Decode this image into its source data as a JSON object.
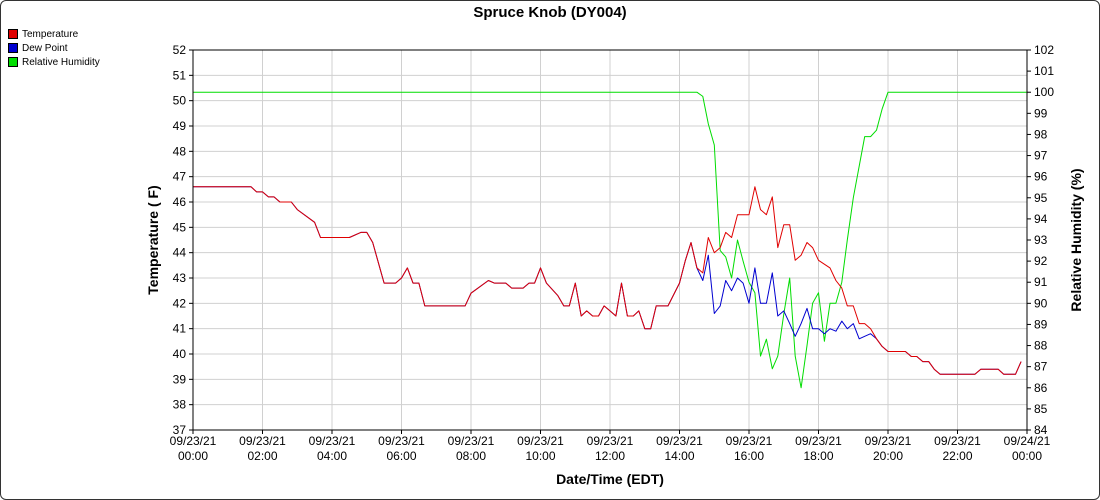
{
  "chart_data": {
    "type": "line",
    "title": "Spruce Knob (DY004)",
    "xlabel": "Date/Time (EDT)",
    "ylabel": "Temperature ( F)",
    "y2label": "Relative Humidity (%)",
    "ylim": [
      37,
      52
    ],
    "y2lim": [
      84,
      102
    ],
    "xlim": [
      0,
      24
    ],
    "grid": true,
    "legend_position": "top-left",
    "x_ticks": [
      {
        "x": 0,
        "line1": "09/23/21",
        "line2": "00:00"
      },
      {
        "x": 2,
        "line1": "09/23/21",
        "line2": "02:00"
      },
      {
        "x": 4,
        "line1": "09/23/21",
        "line2": "04:00"
      },
      {
        "x": 6,
        "line1": "09/23/21",
        "line2": "06:00"
      },
      {
        "x": 8,
        "line1": "09/23/21",
        "line2": "08:00"
      },
      {
        "x": 10,
        "line1": "09/23/21",
        "line2": "10:00"
      },
      {
        "x": 12,
        "line1": "09/23/21",
        "line2": "12:00"
      },
      {
        "x": 14,
        "line1": "09/23/21",
        "line2": "14:00"
      },
      {
        "x": 16,
        "line1": "09/23/21",
        "line2": "16:00"
      },
      {
        "x": 18,
        "line1": "09/23/21",
        "line2": "18:00"
      },
      {
        "x": 20,
        "line1": "09/23/21",
        "line2": "20:00"
      },
      {
        "x": 22,
        "line1": "09/23/21",
        "line2": "22:00"
      },
      {
        "x": 24,
        "line1": "09/24/21",
        "line2": "00:00"
      }
    ],
    "y_ticks": [
      37,
      38,
      39,
      40,
      41,
      42,
      43,
      44,
      45,
      46,
      47,
      48,
      49,
      50,
      51,
      52
    ],
    "y2_ticks": [
      84,
      85,
      86,
      87,
      88,
      89,
      90,
      91,
      92,
      93,
      94,
      95,
      96,
      97,
      98,
      99,
      100,
      101,
      102
    ],
    "series": [
      {
        "name": "Temperature",
        "color": "#e00000",
        "axis": "left",
        "points": [
          [
            0,
            46.6
          ],
          [
            1.67,
            46.6
          ],
          [
            1.83,
            46.4
          ],
          [
            2,
            46.4
          ],
          [
            2.17,
            46.2
          ],
          [
            2.33,
            46.2
          ],
          [
            2.5,
            46.0
          ],
          [
            2.83,
            46.0
          ],
          [
            3,
            45.7
          ],
          [
            3.5,
            45.2
          ],
          [
            3.67,
            44.6
          ],
          [
            4.5,
            44.6
          ],
          [
            4.83,
            44.8
          ],
          [
            5,
            44.8
          ],
          [
            5.17,
            44.4
          ],
          [
            5.5,
            42.8
          ],
          [
            5.83,
            42.8
          ],
          [
            6,
            43.0
          ],
          [
            6.17,
            43.4
          ],
          [
            6.33,
            42.8
          ],
          [
            6.5,
            42.8
          ],
          [
            6.67,
            41.9
          ],
          [
            7.83,
            41.9
          ],
          [
            8,
            42.4
          ],
          [
            8.5,
            42.9
          ],
          [
            8.67,
            42.8
          ],
          [
            9,
            42.8
          ],
          [
            9.17,
            42.6
          ],
          [
            9.5,
            42.6
          ],
          [
            9.67,
            42.8
          ],
          [
            9.83,
            42.8
          ],
          [
            10,
            43.4
          ],
          [
            10.17,
            42.8
          ],
          [
            10.5,
            42.3
          ],
          [
            10.67,
            41.9
          ],
          [
            10.83,
            41.9
          ],
          [
            11,
            42.8
          ],
          [
            11.17,
            41.5
          ],
          [
            11.33,
            41.7
          ],
          [
            11.5,
            41.5
          ],
          [
            11.67,
            41.5
          ],
          [
            11.83,
            41.9
          ],
          [
            12,
            41.7
          ],
          [
            12.17,
            41.5
          ],
          [
            12.33,
            42.8
          ],
          [
            12.5,
            41.5
          ],
          [
            12.67,
            41.5
          ],
          [
            12.83,
            41.7
          ],
          [
            13,
            41.0
          ],
          [
            13.17,
            41.0
          ],
          [
            13.33,
            41.9
          ],
          [
            13.67,
            41.9
          ],
          [
            14,
            42.8
          ],
          [
            14.17,
            43.7
          ],
          [
            14.33,
            44.4
          ],
          [
            14.5,
            43.4
          ],
          [
            14.67,
            43.2
          ],
          [
            14.83,
            44.6
          ],
          [
            15,
            44.0
          ],
          [
            15.17,
            44.2
          ],
          [
            15.33,
            44.8
          ],
          [
            15.5,
            44.6
          ],
          [
            15.67,
            45.5
          ],
          [
            16,
            45.5
          ],
          [
            16.17,
            46.6
          ],
          [
            16.33,
            45.7
          ],
          [
            16.5,
            45.5
          ],
          [
            16.67,
            46.2
          ],
          [
            16.83,
            44.2
          ],
          [
            17,
            45.1
          ],
          [
            17.17,
            45.1
          ],
          [
            17.33,
            43.7
          ],
          [
            17.5,
            43.9
          ],
          [
            17.67,
            44.4
          ],
          [
            17.83,
            44.2
          ],
          [
            18,
            43.7
          ],
          [
            18.33,
            43.4
          ],
          [
            18.5,
            42.9
          ],
          [
            18.67,
            42.6
          ],
          [
            18.83,
            41.9
          ],
          [
            19,
            41.9
          ],
          [
            19.17,
            41.2
          ],
          [
            19.33,
            41.2
          ],
          [
            19.5,
            41.0
          ],
          [
            19.67,
            40.6
          ],
          [
            19.83,
            40.3
          ],
          [
            20,
            40.1
          ],
          [
            20.5,
            40.1
          ],
          [
            20.67,
            39.9
          ],
          [
            20.83,
            39.9
          ],
          [
            21,
            39.7
          ],
          [
            21.17,
            39.7
          ],
          [
            21.33,
            39.4
          ],
          [
            21.5,
            39.2
          ],
          [
            22.5,
            39.2
          ],
          [
            22.67,
            39.4
          ],
          [
            23.17,
            39.4
          ],
          [
            23.33,
            39.2
          ],
          [
            23.67,
            39.2
          ],
          [
            23.83,
            39.7
          ]
        ]
      },
      {
        "name": "Dew Point",
        "color": "#0000d0",
        "axis": "left",
        "points": [
          [
            0,
            46.6
          ],
          [
            1.67,
            46.6
          ],
          [
            1.83,
            46.4
          ],
          [
            2,
            46.4
          ],
          [
            2.17,
            46.2
          ],
          [
            2.33,
            46.2
          ],
          [
            2.5,
            46.0
          ],
          [
            2.83,
            46.0
          ],
          [
            3,
            45.7
          ],
          [
            3.5,
            45.2
          ],
          [
            3.67,
            44.6
          ],
          [
            4.5,
            44.6
          ],
          [
            4.83,
            44.8
          ],
          [
            5,
            44.8
          ],
          [
            5.17,
            44.4
          ],
          [
            5.5,
            42.8
          ],
          [
            5.83,
            42.8
          ],
          [
            6,
            43.0
          ],
          [
            6.17,
            43.4
          ],
          [
            6.33,
            42.8
          ],
          [
            6.5,
            42.8
          ],
          [
            6.67,
            41.9
          ],
          [
            7.83,
            41.9
          ],
          [
            8,
            42.4
          ],
          [
            8.5,
            42.9
          ],
          [
            8.67,
            42.8
          ],
          [
            9,
            42.8
          ],
          [
            9.17,
            42.6
          ],
          [
            9.5,
            42.6
          ],
          [
            9.67,
            42.8
          ],
          [
            9.83,
            42.8
          ],
          [
            10,
            43.4
          ],
          [
            10.17,
            42.8
          ],
          [
            10.5,
            42.3
          ],
          [
            10.67,
            41.9
          ],
          [
            10.83,
            41.9
          ],
          [
            11,
            42.8
          ],
          [
            11.17,
            41.5
          ],
          [
            11.33,
            41.7
          ],
          [
            11.5,
            41.5
          ],
          [
            11.67,
            41.5
          ],
          [
            11.83,
            41.9
          ],
          [
            12,
            41.7
          ],
          [
            12.17,
            41.5
          ],
          [
            12.33,
            42.8
          ],
          [
            12.5,
            41.5
          ],
          [
            12.67,
            41.5
          ],
          [
            12.83,
            41.7
          ],
          [
            13,
            41.0
          ],
          [
            13.17,
            41.0
          ],
          [
            13.33,
            41.9
          ],
          [
            13.67,
            41.9
          ],
          [
            14,
            42.8
          ],
          [
            14.17,
            43.7
          ],
          [
            14.33,
            44.4
          ],
          [
            14.5,
            43.4
          ],
          [
            14.67,
            42.9
          ],
          [
            14.83,
            43.9
          ],
          [
            15,
            41.6
          ],
          [
            15.17,
            41.9
          ],
          [
            15.33,
            42.9
          ],
          [
            15.5,
            42.5
          ],
          [
            15.67,
            43.0
          ],
          [
            15.83,
            42.8
          ],
          [
            16,
            42.0
          ],
          [
            16.17,
            43.4
          ],
          [
            16.33,
            42.0
          ],
          [
            16.5,
            42.0
          ],
          [
            16.67,
            43.2
          ],
          [
            16.83,
            41.5
          ],
          [
            17,
            41.7
          ],
          [
            17.17,
            41.2
          ],
          [
            17.33,
            40.7
          ],
          [
            17.5,
            41.2
          ],
          [
            17.67,
            41.8
          ],
          [
            17.83,
            41.0
          ],
          [
            18,
            41.0
          ],
          [
            18.17,
            40.8
          ],
          [
            18.33,
            41.0
          ],
          [
            18.5,
            40.9
          ],
          [
            18.67,
            41.3
          ],
          [
            18.83,
            41.0
          ],
          [
            19,
            41.2
          ],
          [
            19.17,
            40.6
          ],
          [
            19.33,
            40.7
          ],
          [
            19.5,
            40.8
          ],
          [
            19.67,
            40.6
          ],
          [
            19.83,
            40.3
          ],
          [
            20,
            40.1
          ],
          [
            20.5,
            40.1
          ],
          [
            20.67,
            39.9
          ],
          [
            20.83,
            39.9
          ],
          [
            21,
            39.7
          ],
          [
            21.17,
            39.7
          ],
          [
            21.33,
            39.4
          ],
          [
            21.5,
            39.2
          ],
          [
            22.5,
            39.2
          ],
          [
            22.67,
            39.4
          ],
          [
            23.17,
            39.4
          ],
          [
            23.33,
            39.2
          ],
          [
            23.67,
            39.2
          ],
          [
            23.83,
            39.7
          ]
        ]
      },
      {
        "name": "Relative Humidity",
        "color": "#00dd00",
        "axis": "right",
        "points": [
          [
            0,
            100
          ],
          [
            14.5,
            100
          ],
          [
            14.67,
            99.8
          ],
          [
            14.83,
            98.5
          ],
          [
            15,
            97.5
          ],
          [
            15.17,
            92.5
          ],
          [
            15.33,
            92.2
          ],
          [
            15.5,
            91.2
          ],
          [
            15.67,
            93.0
          ],
          [
            15.83,
            92.0
          ],
          [
            16,
            91.0
          ],
          [
            16.17,
            90.5
          ],
          [
            16.33,
            87.5
          ],
          [
            16.5,
            88.3
          ],
          [
            16.67,
            86.9
          ],
          [
            16.83,
            87.5
          ],
          [
            17,
            89.5
          ],
          [
            17.17,
            91.2
          ],
          [
            17.33,
            87.5
          ],
          [
            17.5,
            86.0
          ],
          [
            17.67,
            88.0
          ],
          [
            17.83,
            90.0
          ],
          [
            18,
            90.5
          ],
          [
            18.17,
            88.2
          ],
          [
            18.33,
            90.0
          ],
          [
            18.5,
            90.0
          ],
          [
            18.67,
            91.0
          ],
          [
            18.83,
            93.0
          ],
          [
            19,
            95.0
          ],
          [
            19.17,
            96.5
          ],
          [
            19.33,
            97.9
          ],
          [
            19.5,
            97.9
          ],
          [
            19.67,
            98.2
          ],
          [
            19.83,
            99.2
          ],
          [
            20,
            100
          ],
          [
            24,
            100
          ]
        ]
      }
    ]
  }
}
